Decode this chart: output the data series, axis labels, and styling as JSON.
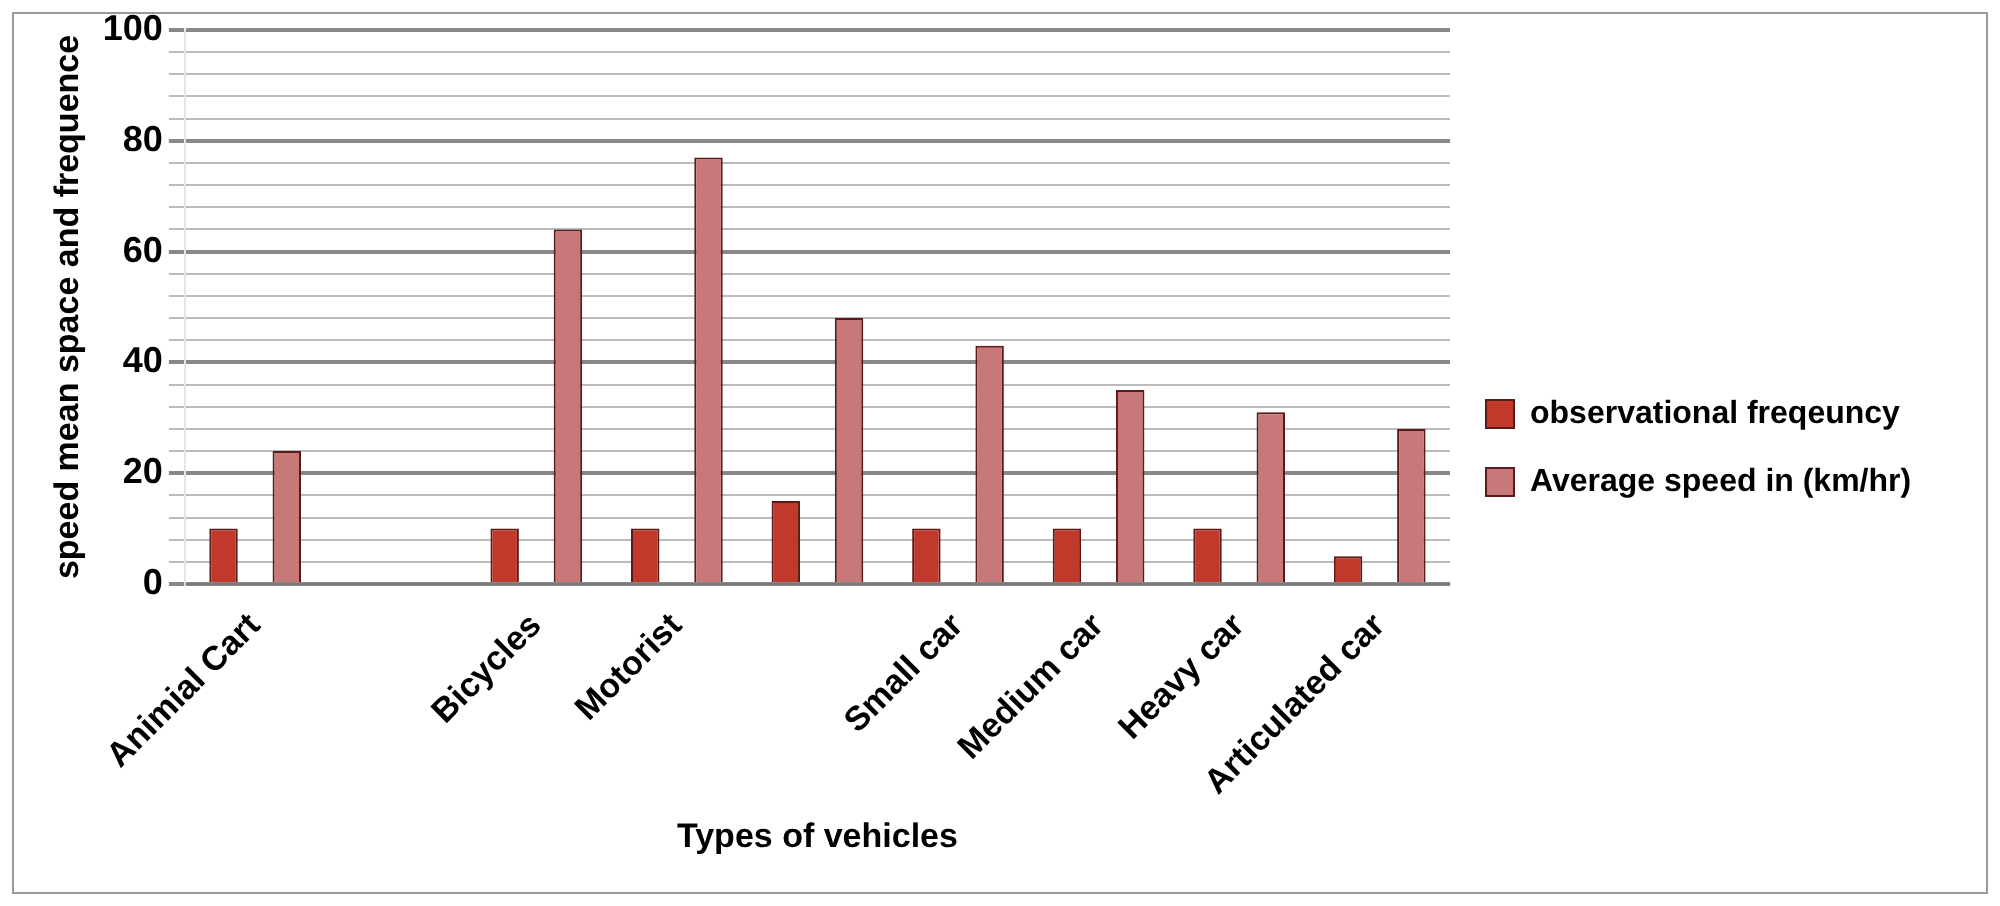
{
  "chart_data": {
    "type": "bar",
    "xlabel": "Types of vehicles",
    "ylabel": "speed mean space and frequence",
    "categories": [
      "Animial Cart",
      null,
      "Bicycles",
      "Motorist",
      null,
      "Small car",
      "Medium car",
      "Heavy car",
      "Articulated car"
    ],
    "series": [
      {
        "name": "observational freqeuncy",
        "color": "#c0392b",
        "values": [
          10,
          null,
          10,
          10,
          15,
          10,
          10,
          10,
          5
        ]
      },
      {
        "name": "Average speed in (km/hr)",
        "color": "#c87878",
        "values": [
          24,
          null,
          64,
          77,
          48,
          43,
          35,
          31,
          28
        ]
      }
    ],
    "ylim": [
      0,
      100
    ],
    "yticks": [
      0,
      {
        "value": 4,
        "label": null
      },
      {
        "value": 8,
        "label": null
      },
      {
        "value": 12,
        "label": null
      },
      {
        "value": 16,
        "label": null
      },
      20,
      {
        "value": 24,
        "label": null
      },
      {
        "value": 28,
        "label": null
      },
      {
        "value": 32,
        "label": null
      },
      {
        "value": 36,
        "label": null
      },
      40,
      {
        "value": 44,
        "label": null
      },
      {
        "value": 48,
        "label": null
      },
      {
        "value": 52,
        "label": null
      },
      {
        "value": 56,
        "label": null
      },
      60,
      {
        "value": 64,
        "label": null
      },
      {
        "value": 68,
        "label": null
      },
      {
        "value": 72,
        "label": null
      },
      {
        "value": 76,
        "label": null
      },
      80,
      {
        "value": 84,
        "label": null
      },
      {
        "value": 88,
        "label": null
      },
      {
        "value": 92,
        "label": null
      },
      {
        "value": 96,
        "label": null
      },
      100
    ],
    "grid": "y",
    "legend": "right"
  }
}
